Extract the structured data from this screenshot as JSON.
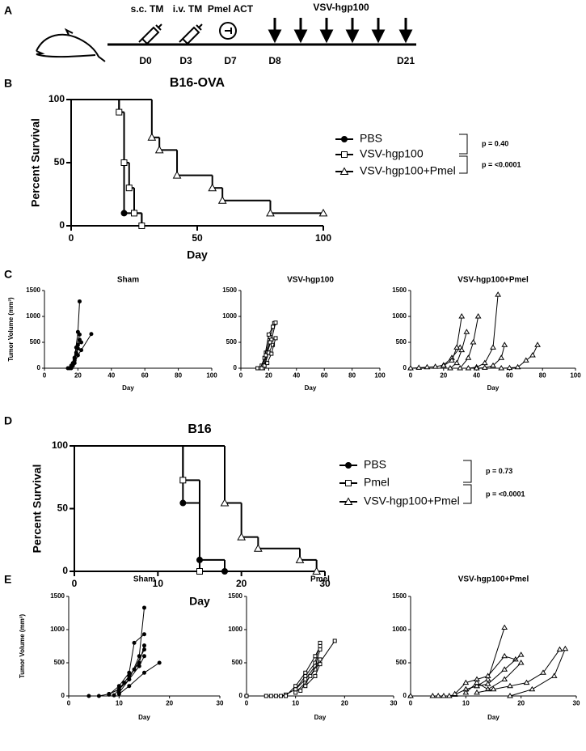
{
  "panel_labels": [
    "A",
    "B",
    "C",
    "D",
    "E"
  ],
  "timeline": {
    "events": [
      {
        "label": "s.c. TM",
        "day": "D0"
      },
      {
        "label": "i.v. TM",
        "day": "D3"
      },
      {
        "label": "Pmel ACT",
        "day": "D7"
      }
    ],
    "treatment": {
      "label": "VSV-hgp100",
      "start": "D8",
      "end": "D21"
    }
  },
  "chart_data": [
    {
      "type": "survival",
      "title": "B16-OVA",
      "x_label": "Day",
      "y_label": "Percent Survival",
      "xlim": [
        0,
        100
      ],
      "xticks": [
        0,
        50,
        100
      ],
      "ylim": [
        0,
        100
      ],
      "yticks": [
        0,
        50,
        100
      ],
      "series": [
        {
          "name": "PBS",
          "marker": "circle",
          "x": [
            0,
            19,
            21,
            28
          ],
          "values": [
            100,
            90,
            10,
            0
          ]
        },
        {
          "name": "VSV-hgp100",
          "marker": "square",
          "x": [
            0,
            19,
            21,
            23,
            25,
            28
          ],
          "values": [
            100,
            90,
            50,
            30,
            10,
            0
          ]
        },
        {
          "name": "VSV-hgp100+Pmel",
          "marker": "triangle",
          "x": [
            0,
            32,
            35,
            42,
            56,
            60,
            79,
            100
          ],
          "values": [
            100,
            70,
            60,
            40,
            30,
            20,
            10,
            10
          ]
        }
      ],
      "annotations": [
        "p = 0.40",
        "p = <0.0001"
      ]
    },
    {
      "type": "line",
      "title": "Sham",
      "x_label": "Day",
      "y_label": "Tumor Volume (mm³)",
      "marker": "circle",
      "xlim": [
        0,
        100
      ],
      "xticks": [
        0,
        20,
        40,
        60,
        80,
        100
      ],
      "ylim": [
        0,
        1500
      ],
      "yticks": [
        0,
        500,
        1000,
        1500
      ],
      "series": [
        {
          "x": [
            14,
            16,
            18,
            20,
            21
          ],
          "values": [
            0,
            50,
            200,
            700,
            1290
          ]
        },
        {
          "x": [
            15,
            17,
            19,
            21
          ],
          "values": [
            0,
            100,
            400,
            650
          ]
        },
        {
          "x": [
            16,
            18,
            20,
            22
          ],
          "values": [
            0,
            150,
            450,
            500
          ]
        },
        {
          "x": [
            17,
            19,
            21
          ],
          "values": [
            50,
            300,
            550
          ]
        },
        {
          "x": [
            18,
            20,
            22,
            28
          ],
          "values": [
            100,
            250,
            350,
            660
          ]
        },
        {
          "x": [
            16,
            18,
            20
          ],
          "values": [
            20,
            200,
            380
          ]
        }
      ]
    },
    {
      "type": "line",
      "title": "VSV-hgp100",
      "x_label": "Day",
      "marker": "square",
      "xlim": [
        0,
        100
      ],
      "xticks": [
        0,
        20,
        40,
        60,
        80,
        100
      ],
      "ylim": [
        0,
        1500
      ],
      "yticks": [
        0,
        500,
        1000,
        1500
      ],
      "series": [
        {
          "x": [
            12,
            15,
            18,
            21,
            24
          ],
          "values": [
            0,
            50,
            300,
            600,
            870
          ]
        },
        {
          "x": [
            14,
            17,
            20,
            23
          ],
          "values": [
            0,
            200,
            650,
            800
          ]
        },
        {
          "x": [
            16,
            19,
            22,
            25
          ],
          "values": [
            0,
            300,
            550,
            880
          ]
        },
        {
          "x": [
            15,
            18,
            21
          ],
          "values": [
            0,
            250,
            500
          ]
        },
        {
          "x": [
            17,
            20,
            23
          ],
          "values": [
            50,
            300,
            450
          ]
        },
        {
          "x": [
            19,
            22,
            25
          ],
          "values": [
            100,
            280,
            580
          ]
        }
      ]
    },
    {
      "type": "line",
      "title": "VSV-hgp100+Pmel",
      "x_label": "Day",
      "marker": "triangle",
      "xlim": [
        0,
        100
      ],
      "xticks": [
        0,
        20,
        40,
        60,
        80,
        100
      ],
      "ylim": [
        0,
        1500
      ],
      "yticks": [
        0,
        500,
        1000,
        1500
      ],
      "series": [
        {
          "x": [
            0,
            5,
            10,
            15,
            20,
            25,
            30
          ],
          "values": [
            0,
            10,
            20,
            30,
            60,
            200,
            400
          ]
        },
        {
          "x": [
            20,
            25,
            28,
            31
          ],
          "values": [
            50,
            150,
            400,
            1000
          ]
        },
        {
          "x": [
            24,
            28,
            31,
            34
          ],
          "values": [
            0,
            100,
            350,
            700
          ]
        },
        {
          "x": [
            30,
            35,
            38,
            41
          ],
          "values": [
            0,
            200,
            500,
            1000
          ]
        },
        {
          "x": [
            35,
            40,
            45,
            50,
            53
          ],
          "values": [
            0,
            20,
            100,
            400,
            1420
          ]
        },
        {
          "x": [
            40,
            45,
            50,
            55,
            57
          ],
          "values": [
            0,
            10,
            50,
            200,
            450
          ]
        },
        {
          "x": [
            55,
            60,
            65,
            70,
            74,
            77
          ],
          "values": [
            0,
            5,
            20,
            150,
            250,
            450
          ]
        }
      ]
    },
    {
      "type": "survival",
      "title": "B16",
      "x_label": "Day",
      "y_label": "Percent Survival",
      "xlim": [
        0,
        30
      ],
      "xticks": [
        0,
        10,
        20,
        30
      ],
      "ylim": [
        0,
        100
      ],
      "yticks": [
        0,
        50,
        100
      ],
      "series": [
        {
          "name": "PBS",
          "marker": "circle",
          "x": [
            0,
            13,
            15,
            18
          ],
          "values": [
            100,
            54.5,
            9.1,
            0
          ]
        },
        {
          "name": "Pmel",
          "marker": "square",
          "x": [
            0,
            13,
            15
          ],
          "values": [
            100,
            72.7,
            0
          ]
        },
        {
          "name": "VSV-hgp100+Pmel",
          "marker": "triangle",
          "x": [
            0,
            18,
            20,
            22,
            27,
            29
          ],
          "values": [
            100,
            54.5,
            27.3,
            18.2,
            9.1,
            0
          ]
        }
      ],
      "annotations": [
        "p = 0.73",
        "p = <0.0001"
      ]
    },
    {
      "type": "line",
      "title": "Sham",
      "x_label": "Day",
      "y_label": "Tumor Volume (mm³)",
      "marker": "circle",
      "xlim": [
        0,
        30
      ],
      "xticks": [
        0,
        10,
        20,
        30
      ],
      "ylim": [
        0,
        1500
      ],
      "yticks": [
        0,
        500,
        1000,
        1500
      ],
      "series": [
        {
          "x": [
            4,
            6,
            8,
            10,
            12,
            14,
            15
          ],
          "values": [
            0,
            0,
            30,
            100,
            250,
            600,
            1330
          ]
        },
        {
          "x": [
            8,
            10,
            12,
            13,
            15
          ],
          "values": [
            20,
            150,
            350,
            800,
            930
          ]
        },
        {
          "x": [
            8,
            10,
            12,
            14,
            15
          ],
          "values": [
            30,
            100,
            300,
            500,
            760
          ]
        },
        {
          "x": [
            9,
            11,
            13,
            15
          ],
          "values": [
            10,
            200,
            400,
            700
          ]
        },
        {
          "x": [
            10,
            12,
            14,
            15
          ],
          "values": [
            50,
            250,
            450,
            600
          ]
        },
        {
          "x": [
            10,
            12,
            15,
            18
          ],
          "values": [
            30,
            150,
            350,
            500
          ]
        }
      ]
    },
    {
      "type": "line",
      "title": "Pmel",
      "x_label": "Day",
      "marker": "square",
      "xlim": [
        0,
        30
      ],
      "xticks": [
        0,
        10,
        20,
        30
      ],
      "ylim": [
        0,
        1500
      ],
      "yticks": [
        0,
        500,
        1000,
        1500
      ],
      "series": [
        {
          "x": [
            0,
            4,
            5,
            6,
            7,
            8,
            10,
            12,
            14,
            15
          ],
          "values": [
            0,
            0,
            0,
            0,
            0,
            20,
            100,
            300,
            500,
            800
          ]
        },
        {
          "x": [
            8,
            10,
            12,
            14,
            15
          ],
          "values": [
            0,
            150,
            350,
            600,
            750
          ]
        },
        {
          "x": [
            10,
            12,
            14,
            15
          ],
          "values": [
            100,
            250,
            450,
            700
          ]
        },
        {
          "x": [
            10,
            12,
            14,
            18
          ],
          "values": [
            50,
            200,
            400,
            830
          ]
        },
        {
          "x": [
            11,
            13,
            15
          ],
          "values": [
            80,
            300,
            550
          ]
        },
        {
          "x": [
            12,
            14,
            15
          ],
          "values": [
            150,
            300,
            480
          ]
        }
      ]
    },
    {
      "type": "line",
      "title": "VSV-hgp100+Pmel",
      "x_label": "Day",
      "marker": "triangle",
      "xlim": [
        0,
        30
      ],
      "xticks": [
        0,
        10,
        20,
        30
      ],
      "ylim": [
        0,
        1500
      ],
      "yticks": [
        0,
        500,
        1000,
        1500
      ],
      "series": [
        {
          "x": [
            0,
            4,
            5,
            6,
            7,
            8,
            10,
            12,
            14,
            17
          ],
          "values": [
            0,
            0,
            0,
            0,
            0,
            20,
            100,
            150,
            250,
            1030
          ]
        },
        {
          "x": [
            8,
            10,
            12,
            14,
            17,
            19
          ],
          "values": [
            30,
            200,
            250,
            300,
            600,
            550
          ]
        },
        {
          "x": [
            10,
            12,
            14,
            17,
            20
          ],
          "values": [
            100,
            150,
            180,
            400,
            620
          ]
        },
        {
          "x": [
            10,
            12,
            14,
            17,
            20
          ],
          "values": [
            50,
            200,
            100,
            250,
            500
          ]
        },
        {
          "x": [
            12,
            15,
            18,
            21,
            24,
            27
          ],
          "values": [
            50,
            100,
            150,
            200,
            350,
            700
          ]
        },
        {
          "x": [
            18,
            22,
            26,
            28
          ],
          "values": [
            0,
            100,
            300,
            710
          ]
        }
      ]
    }
  ]
}
